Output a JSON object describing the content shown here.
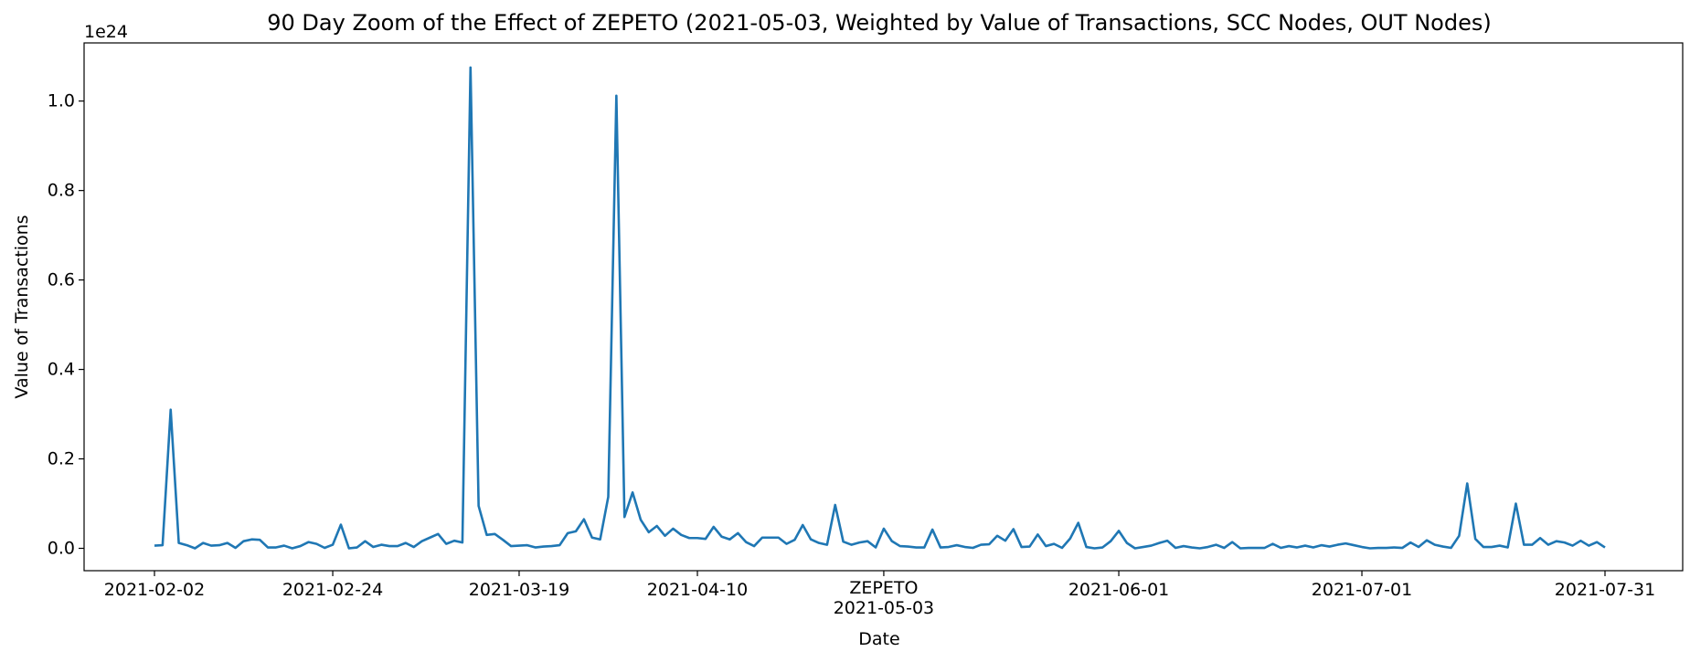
{
  "chart_data": {
    "type": "line",
    "title": "90 Day Zoom of the Effect of ZEPETO (2021-05-03, Weighted by Value of Transactions, SCC Nodes, OUT Nodes)",
    "xlabel": "Date",
    "ylabel": "Value of Transactions",
    "y_offset_label": "1e24",
    "ylim": [
      -0.05,
      1.13
    ],
    "y_ticks": [
      "0.0",
      "0.2",
      "0.4",
      "0.6",
      "0.8",
      "1.0"
    ],
    "x_start": "2021-02-02",
    "x_end": "2021-07-31",
    "x_ticks": [
      {
        "date": "2021-02-02",
        "label": "2021-02-02"
      },
      {
        "date": "2021-02-24",
        "label": "2021-02-24"
      },
      {
        "date": "2021-03-19",
        "label": "2021-03-19"
      },
      {
        "date": "2021-04-10",
        "label": "2021-04-10"
      },
      {
        "date": "2021-05-03",
        "label": "2021-05-03",
        "event": "ZEPETO"
      },
      {
        "date": "2021-06-01",
        "label": "2021-06-01"
      },
      {
        "date": "2021-07-01",
        "label": "2021-07-01"
      },
      {
        "date": "2021-07-31",
        "label": "2021-07-31"
      }
    ],
    "grid": false,
    "series": [
      {
        "color": "#1f77b4",
        "x": [
          "2021-02-02",
          "2021-02-03",
          "2021-02-04",
          "2021-02-05",
          "2021-02-06",
          "2021-02-07",
          "2021-02-08",
          "2021-02-09",
          "2021-02-10",
          "2021-02-11",
          "2021-02-12",
          "2021-02-13",
          "2021-02-14",
          "2021-02-15",
          "2021-02-16",
          "2021-02-17",
          "2021-02-18",
          "2021-02-19",
          "2021-02-20",
          "2021-02-21",
          "2021-02-22",
          "2021-02-23",
          "2021-02-24",
          "2021-02-25",
          "2021-02-26",
          "2021-02-27",
          "2021-02-28",
          "2021-03-01",
          "2021-03-02",
          "2021-03-03",
          "2021-03-04",
          "2021-03-05",
          "2021-03-06",
          "2021-03-07",
          "2021-03-08",
          "2021-03-09",
          "2021-03-10",
          "2021-03-11",
          "2021-03-12",
          "2021-03-13",
          "2021-03-14",
          "2021-03-15",
          "2021-03-16",
          "2021-03-17",
          "2021-03-18",
          "2021-03-19",
          "2021-03-20",
          "2021-03-21",
          "2021-03-22",
          "2021-03-23",
          "2021-03-24",
          "2021-03-25",
          "2021-03-26",
          "2021-03-27",
          "2021-03-28",
          "2021-03-29",
          "2021-03-30",
          "2021-03-31",
          "2021-04-01",
          "2021-04-02",
          "2021-04-03",
          "2021-04-04",
          "2021-04-05",
          "2021-04-06",
          "2021-04-07",
          "2021-04-08",
          "2021-04-09",
          "2021-04-10",
          "2021-04-11",
          "2021-04-12",
          "2021-04-13",
          "2021-04-14",
          "2021-04-15",
          "2021-04-16",
          "2021-04-17",
          "2021-04-18",
          "2021-04-19",
          "2021-04-20",
          "2021-04-21",
          "2021-04-22",
          "2021-04-23",
          "2021-04-24",
          "2021-04-25",
          "2021-04-26",
          "2021-04-27",
          "2021-04-28",
          "2021-04-29",
          "2021-04-30",
          "2021-05-01",
          "2021-05-02",
          "2021-05-03",
          "2021-05-04",
          "2021-05-05",
          "2021-05-06",
          "2021-05-07",
          "2021-05-08",
          "2021-05-09",
          "2021-05-10",
          "2021-05-11",
          "2021-05-12",
          "2021-05-13",
          "2021-05-14",
          "2021-05-15",
          "2021-05-16",
          "2021-05-17",
          "2021-05-18",
          "2021-05-19",
          "2021-05-20",
          "2021-05-21",
          "2021-05-22",
          "2021-05-23",
          "2021-05-24",
          "2021-05-25",
          "2021-05-26",
          "2021-05-27",
          "2021-05-28",
          "2021-05-29",
          "2021-05-30",
          "2021-05-31",
          "2021-06-01",
          "2021-06-02",
          "2021-06-03",
          "2021-06-04",
          "2021-06-05",
          "2021-06-06",
          "2021-06-07",
          "2021-06-08",
          "2021-06-09",
          "2021-06-10",
          "2021-06-11",
          "2021-06-12",
          "2021-06-13",
          "2021-06-14",
          "2021-06-15",
          "2021-06-16",
          "2021-06-17",
          "2021-06-18",
          "2021-06-19",
          "2021-06-20",
          "2021-06-21",
          "2021-06-22",
          "2021-06-23",
          "2021-06-24",
          "2021-06-25",
          "2021-06-26",
          "2021-06-27",
          "2021-06-28",
          "2021-06-29",
          "2021-06-30",
          "2021-07-01",
          "2021-07-02",
          "2021-07-03",
          "2021-07-04",
          "2021-07-05",
          "2021-07-06",
          "2021-07-07",
          "2021-07-08",
          "2021-07-09",
          "2021-07-10",
          "2021-07-11",
          "2021-07-12",
          "2021-07-13",
          "2021-07-14",
          "2021-07-15",
          "2021-07-16",
          "2021-07-17",
          "2021-07-18",
          "2021-07-19",
          "2021-07-20",
          "2021-07-21",
          "2021-07-22",
          "2021-07-23",
          "2021-07-24",
          "2021-07-25",
          "2021-07-26",
          "2021-07-27",
          "2021-07-28",
          "2021-07-29",
          "2021-07-30",
          "2021-07-31"
        ],
        "values": [
          0.006,
          0.007,
          0.31,
          0.012,
          0.007,
          0.0,
          0.012,
          0.006,
          0.007,
          0.012,
          0.001,
          0.016,
          0.02,
          0.019,
          0.002,
          0.002,
          0.006,
          0.0,
          0.005,
          0.014,
          0.01,
          0.001,
          0.008,
          0.053,
          0.0,
          0.002,
          0.016,
          0.003,
          0.008,
          0.005,
          0.005,
          0.012,
          0.003,
          0.016,
          0.024,
          0.032,
          0.01,
          0.017,
          0.013,
          1.075,
          0.095,
          0.03,
          0.032,
          0.019,
          0.005,
          0.006,
          0.007,
          0.002,
          0.004,
          0.005,
          0.007,
          0.034,
          0.038,
          0.065,
          0.024,
          0.02,
          0.115,
          1.012,
          0.07,
          0.125,
          0.064,
          0.036,
          0.05,
          0.028,
          0.044,
          0.03,
          0.023,
          0.023,
          0.021,
          0.048,
          0.026,
          0.02,
          0.034,
          0.014,
          0.005,
          0.024,
          0.024,
          0.024,
          0.01,
          0.019,
          0.052,
          0.02,
          0.012,
          0.008,
          0.097,
          0.015,
          0.008,
          0.013,
          0.016,
          0.002,
          0.044,
          0.016,
          0.005,
          0.004,
          0.002,
          0.002,
          0.042,
          0.002,
          0.003,
          0.007,
          0.003,
          0.001,
          0.008,
          0.009,
          0.028,
          0.017,
          0.043,
          0.003,
          0.004,
          0.031,
          0.005,
          0.01,
          0.001,
          0.022,
          0.057,
          0.003,
          0.0,
          0.002,
          0.016,
          0.039,
          0.012,
          0.0,
          0.003,
          0.006,
          0.012,
          0.017,
          0.001,
          0.005,
          0.002,
          0.0,
          0.003,
          0.008,
          0.001,
          0.014,
          0.0,
          0.001,
          0.001,
          0.001,
          0.01,
          0.001,
          0.005,
          0.002,
          0.006,
          0.002,
          0.007,
          0.004,
          0.008,
          0.011,
          0.007,
          0.003,
          0.0,
          0.001,
          0.001,
          0.002,
          0.001,
          0.013,
          0.003,
          0.018,
          0.008,
          0.004,
          0.001,
          0.028,
          0.145,
          0.021,
          0.003,
          0.003,
          0.006,
          0.002,
          0.1,
          0.008,
          0.008,
          0.023,
          0.008,
          0.016,
          0.013,
          0.006,
          0.017,
          0.006,
          0.014,
          0.002
        ]
      }
    ]
  }
}
